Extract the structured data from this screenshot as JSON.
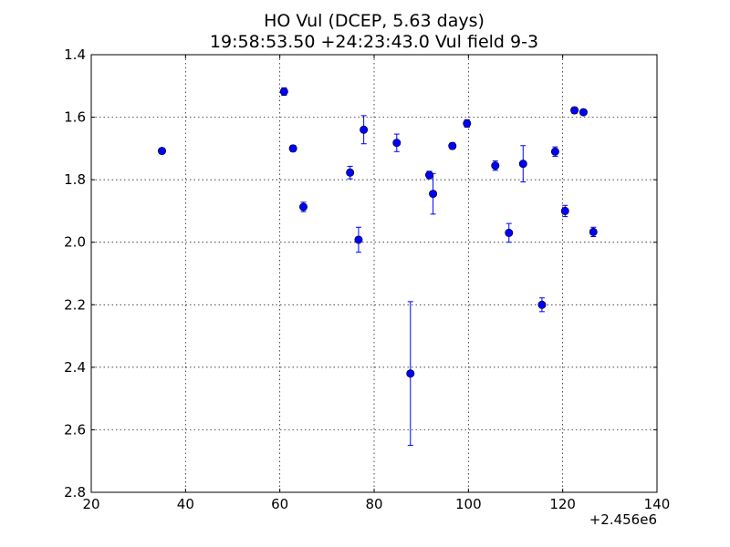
{
  "chart_data": {
    "type": "scatter",
    "title": "HO Vul (DCEP, 5.63 days)",
    "subtitle": "19:58:53.50 +24:23:43.0 Vul field 9-3",
    "xlabel": "",
    "ylabel": "",
    "x_offset_label": "+2.456e6",
    "xlim": [
      20,
      140
    ],
    "ylim": [
      2.8,
      1.4
    ],
    "y_inverted": true,
    "grid": true,
    "grid_style": "dotted",
    "x_ticks": [
      20,
      40,
      60,
      80,
      100,
      120,
      140
    ],
    "y_ticks": [
      1.4,
      1.6,
      1.8,
      2.0,
      2.2,
      2.4,
      2.6,
      2.8
    ],
    "x_tick_labels": [
      "20",
      "40",
      "60",
      "80",
      "100",
      "120",
      "140"
    ],
    "y_tick_labels": [
      "1.4",
      "1.6",
      "1.8",
      "2.0",
      "2.2",
      "2.4",
      "2.6",
      "2.8"
    ],
    "marker_color": "#0000ff",
    "points": [
      {
        "x": 35.0,
        "y": 1.708,
        "err": 0.008
      },
      {
        "x": 60.9,
        "y": 1.518,
        "err": 0.012
      },
      {
        "x": 62.8,
        "y": 1.7,
        "err": 0.01
      },
      {
        "x": 65.0,
        "y": 1.887,
        "err": 0.015
      },
      {
        "x": 74.9,
        "y": 1.777,
        "err": 0.02
      },
      {
        "x": 76.7,
        "y": 1.992,
        "err": 0.04
      },
      {
        "x": 77.8,
        "y": 1.64,
        "err": 0.045
      },
      {
        "x": 84.8,
        "y": 1.682,
        "err": 0.028
      },
      {
        "x": 87.7,
        "y": 2.42,
        "err": 0.23
      },
      {
        "x": 91.7,
        "y": 1.785,
        "err": 0.012
      },
      {
        "x": 92.5,
        "y": 1.845,
        "err": 0.065
      },
      {
        "x": 96.6,
        "y": 1.692,
        "err": 0.01
      },
      {
        "x": 99.7,
        "y": 1.62,
        "err": 0.012
      },
      {
        "x": 105.7,
        "y": 1.755,
        "err": 0.015
      },
      {
        "x": 108.6,
        "y": 1.97,
        "err": 0.03
      },
      {
        "x": 111.6,
        "y": 1.749,
        "err": 0.058
      },
      {
        "x": 115.6,
        "y": 2.2,
        "err": 0.022
      },
      {
        "x": 118.4,
        "y": 1.71,
        "err": 0.015
      },
      {
        "x": 120.5,
        "y": 1.9,
        "err": 0.018
      },
      {
        "x": 122.5,
        "y": 1.578,
        "err": 0.01
      },
      {
        "x": 124.4,
        "y": 1.584,
        "err": 0.008
      },
      {
        "x": 126.5,
        "y": 1.967,
        "err": 0.015
      }
    ]
  }
}
